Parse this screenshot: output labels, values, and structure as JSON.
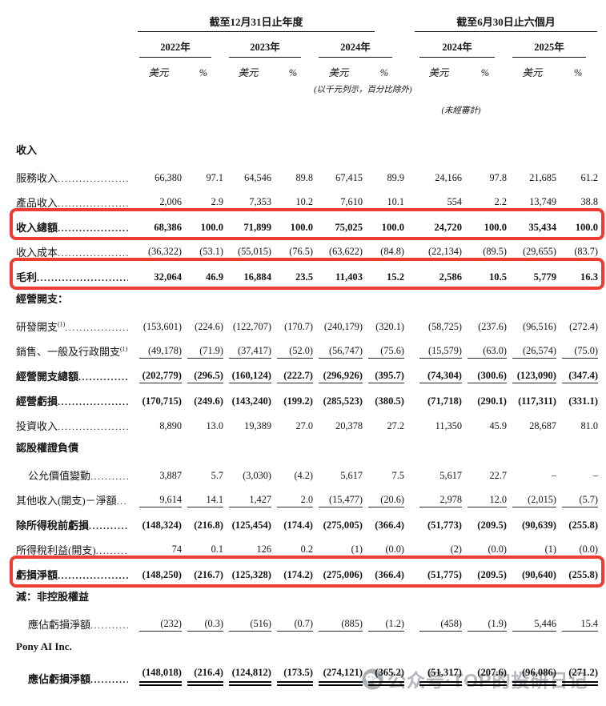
{
  "colors": {
    "highlight_border": "#ee3b33",
    "text": "#151515",
    "watermark_gray": "#a7abb0"
  },
  "watermark": {
    "text": "公众号·TOP的投研日记",
    "icon": "wechat-icon"
  },
  "table": {
    "group_annual": "截至12月31日止年度",
    "group_interim": "截至6月30日止六個月",
    "years": [
      "2022年",
      "2023年",
      "2024年",
      "2024年",
      "2025年"
    ],
    "subcol_currency": "美元",
    "subcol_percent": "%",
    "note_units": "(以千元列示，百分比除外)",
    "note_unaudited": "(未經審計)",
    "rows": [
      {
        "label": "收入",
        "section": true,
        "bold": true
      },
      {
        "label": "服務收入",
        "dots": true,
        "values": [
          "66,380",
          "97.1",
          "64,546",
          "89.8",
          "67,415",
          "89.9",
          "24,166",
          "97.8",
          "21,685",
          "61.2"
        ]
      },
      {
        "label": "產品收入",
        "dots": true,
        "underline": true,
        "values": [
          "2,006",
          "2.9",
          "7,353",
          "10.2",
          "7,610",
          "10.1",
          "554",
          "2.2",
          "13,749",
          "38.8"
        ]
      },
      {
        "label": "收入總額",
        "bold": true,
        "dots": true,
        "highlight": true,
        "values": [
          "68,386",
          "100.0",
          "71,899",
          "100.0",
          "75,025",
          "100.0",
          "24,720",
          "100.0",
          "35,434",
          "100.0"
        ]
      },
      {
        "label": "收入成本",
        "dots": true,
        "underline": true,
        "values": [
          "(36,322)",
          "(53.1)",
          "(55,015)",
          "(76.5)",
          "(63,622)",
          "(84.8)",
          "(22,134)",
          "(89.5)",
          "(29,655)",
          "(83.7)"
        ]
      },
      {
        "label": "毛利",
        "bold": true,
        "dots": true,
        "highlight": true,
        "values": [
          "32,064",
          "46.9",
          "16,884",
          "23.5",
          "11,403",
          "15.2",
          "2,586",
          "10.5",
          "5,779",
          "16.3"
        ]
      },
      {
        "label": "經營開支：",
        "section": true,
        "bold": true
      },
      {
        "label": "研發開支",
        "sup": "(1)",
        "dots": true,
        "values": [
          "(153,601)",
          "(224.6)",
          "(122,707)",
          "(170.7)",
          "(240,179)",
          "(320.1)",
          "(58,725)",
          "(237.6)",
          "(96,516)",
          "(272.4)"
        ]
      },
      {
        "label": "銷售、一般及行政開支",
        "sup": "(1)",
        "dots": true,
        "underline": true,
        "values": [
          "(49,178)",
          "(71.9)",
          "(37,417)",
          "(52.0)",
          "(56,747)",
          "(75.6)",
          "(15,579)",
          "(63.0)",
          "(26,574)",
          "(75.0)"
        ]
      },
      {
        "label": "經營開支總額",
        "bold": true,
        "dots": true,
        "underline": true,
        "values": [
          "(202,779)",
          "(296.5)",
          "(160,124)",
          "(222.7)",
          "(296,926)",
          "(395.7)",
          "(74,304)",
          "(300.6)",
          "(123,090)",
          "(347.4)"
        ]
      },
      {
        "label": "經營虧損",
        "bold": true,
        "dots": true,
        "values": [
          "(170,715)",
          "(249.6)",
          "(143,240)",
          "(199.2)",
          "(285,523)",
          "(380.5)",
          "(71,718)",
          "(290.1)",
          "(117,311)",
          "(331.1)"
        ]
      },
      {
        "label": "投資收入",
        "dots": true,
        "values": [
          "8,890",
          "13.0",
          "19,389",
          "27.0",
          "20,378",
          "27.2",
          "11,350",
          "45.9",
          "28,687",
          "81.0"
        ]
      },
      {
        "label": "認股權證負債",
        "section": true,
        "bold": true
      },
      {
        "label": "公允價值變動",
        "indent": true,
        "dots": true,
        "values": [
          "3,887",
          "5.7",
          "(3,030)",
          "(4.2)",
          "5,617",
          "7.5",
          "5,617",
          "22.7",
          "–",
          "–"
        ]
      },
      {
        "label": "其他收入(開支)－淨額",
        "dots": true,
        "underline": true,
        "values": [
          "9,614",
          "14.1",
          "1,427",
          "2.0",
          "(15,477)",
          "(20.6)",
          "2,978",
          "12.0",
          "(2,015)",
          "(5.7)"
        ]
      },
      {
        "label": "除所得稅前虧損",
        "bold": true,
        "dots": true,
        "values": [
          "(148,324)",
          "(216.8)",
          "(125,454)",
          "(174.4)",
          "(275,005)",
          "(366.4)",
          "(51,773)",
          "(209.5)",
          "(90,639)",
          "(255.8)"
        ]
      },
      {
        "label": "所得稅利益(開支)",
        "dots": true,
        "underline": true,
        "values": [
          "74",
          "0.1",
          "126",
          "0.2",
          "(1)",
          "(0.0)",
          "(2)",
          "(0.0)",
          "(1)",
          "(0.0)"
        ]
      },
      {
        "label": "虧損淨額",
        "bold": true,
        "dots": true,
        "highlight": true,
        "values": [
          "(148,250)",
          "(216.7)",
          "(125,328)",
          "(174.2)",
          "(275,006)",
          "(366.4)",
          "(51,775)",
          "(209.5)",
          "(90,640)",
          "(255.8)"
        ]
      },
      {
        "label": "減：非控股權益",
        "section": true,
        "bold": true
      },
      {
        "label": "應佔虧損淨額",
        "indent": true,
        "dots": true,
        "underline": true,
        "values": [
          "(232)",
          "(0.3)",
          "(516)",
          "(0.7)",
          "(885)",
          "(1.2)",
          "(458)",
          "(1.9)",
          "5,446",
          "15.4"
        ]
      },
      {
        "label": "Pony AI Inc.",
        "section": true,
        "bold": true
      },
      {
        "label": "應佔虧損淨額",
        "indent": true,
        "bold": true,
        "dots": true,
        "double_underline": true,
        "values": [
          "(148,018)",
          "(216.4)",
          "(124,812)",
          "(173.5)",
          "(274,121)",
          "(365.2)",
          "(51,317)",
          "(207.6)",
          "(96,086)",
          "(271.2)"
        ]
      }
    ]
  }
}
